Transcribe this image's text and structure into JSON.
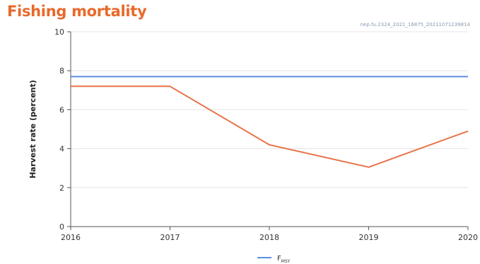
{
  "page": {
    "title": "Fishing mortality",
    "code": "nep.fu.2324_2021_16875_20211071239814"
  },
  "chart_data": {
    "type": "line",
    "title": "Fishing mortality",
    "xlabel": "",
    "ylabel": "Harvest rate (percent)",
    "x": [
      2016,
      2017,
      2018,
      2019,
      2020
    ],
    "xlim": [
      2016,
      2020
    ],
    "ylim": [
      0,
      10
    ],
    "yticks": [
      0,
      2,
      4,
      6,
      8,
      10
    ],
    "grid": true,
    "legend_position": "bottom-center",
    "series": [
      {
        "name": "",
        "color": "#e8734a",
        "values": [
          7.2,
          7.2,
          4.2,
          3.05,
          4.9
        ]
      },
      {
        "name": "FMSY",
        "legend_main": "F",
        "legend_sub": "MSY",
        "color": "#5b8fe0",
        "values": [
          7.7,
          7.7,
          7.7,
          7.7,
          7.7
        ]
      }
    ]
  }
}
